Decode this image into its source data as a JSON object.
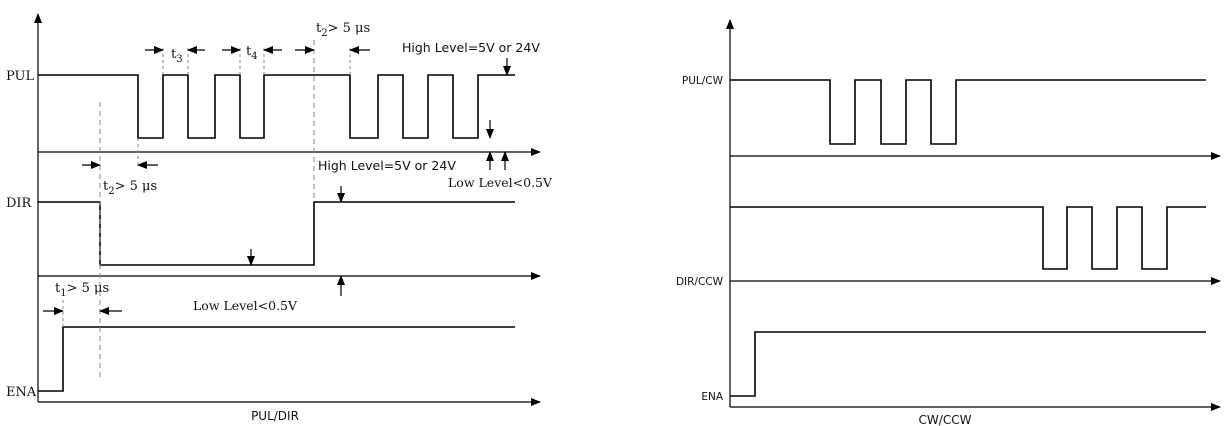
{
  "left": {
    "caption": "PUL/DIR",
    "signals": {
      "pul": "PUL",
      "dir": "DIR",
      "ena": "ENA"
    },
    "labels": {
      "t3": "t",
      "t3_sub": "3",
      "t4": "t",
      "t4_sub": "4",
      "t2_top": "t",
      "t2_top_sub": "2",
      "t2_top_rest": "> 5 μs",
      "t2_mid": "t",
      "t2_mid_sub": "2",
      "t2_mid_rest": "> 5 μs",
      "t1": "t",
      "t1_sub": "1",
      "t1_rest": "> 5 μs",
      "high_pul": "High Level=5V or 24V",
      "high_dir": "High Level=5V or 24V",
      "low_pul": "Low Level<0.5V",
      "low_dir": "Low Level<0.5V"
    }
  },
  "right": {
    "caption": "CW/CCW",
    "signals": {
      "pul": "PUL/CW",
      "dir": "DIR/CCW",
      "ena": "ENA"
    }
  },
  "colors": {
    "line": "#000000",
    "dashed": "#888888"
  }
}
